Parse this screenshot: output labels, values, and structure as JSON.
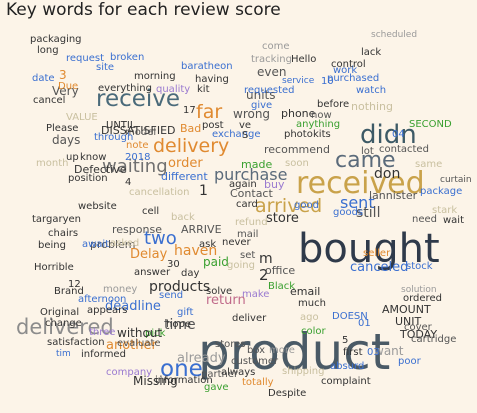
{
  "chart_data": {
    "type": "wordcloud",
    "title": "Key words for each review score",
    "words": [
      {
        "text": "product",
        "color": "#4a5a66"
      },
      {
        "text": "bought",
        "color": "#2f3a4a"
      },
      {
        "text": "received",
        "color": "#c9a24a"
      },
      {
        "text": "delivered",
        "color": "#8c8c8c"
      },
      {
        "text": "receive",
        "color": "#4a6a7a"
      },
      {
        "text": "didn",
        "color": "#3d5a66"
      },
      {
        "text": "came",
        "color": "#5a6a7a"
      },
      {
        "text": "delivery",
        "color": "#e08a30"
      },
      {
        "text": "one",
        "color": "#3a6fd0"
      },
      {
        "text": "two",
        "color": "#3a6fd0"
      },
      {
        "text": "waiting",
        "color": "#707070"
      },
      {
        "text": "arrived",
        "color": "#c9a24a"
      },
      {
        "text": "purchase",
        "color": "#5a6a7a"
      },
      {
        "text": "far",
        "color": "#e08a30"
      },
      {
        "text": "sent",
        "color": "#3a6fd0"
      },
      {
        "text": "haven",
        "color": "#e08a30"
      },
      {
        "text": "time",
        "color": "#555555"
      },
      {
        "text": "products",
        "color": "#333333"
      },
      {
        "text": "store",
        "color": "#333333"
      },
      {
        "text": "still",
        "color": "#555555"
      },
      {
        "text": "don",
        "color": "#333333"
      },
      {
        "text": "another",
        "color": "#e08a30"
      },
      {
        "text": "already",
        "color": "#9a9a9a"
      },
      {
        "text": "return",
        "color": "#c06a8a"
      },
      {
        "text": "order",
        "color": "#e08a30"
      },
      {
        "text": "m",
        "color": "#333333"
      },
      {
        "text": "2",
        "color": "#333333"
      },
      {
        "text": "1",
        "color": "#333333"
      },
      {
        "text": "canceled",
        "color": "#3a6fd0"
      },
      {
        "text": "want",
        "color": "#9a9a9a"
      },
      {
        "text": "Very",
        "color": "#555555"
      },
      {
        "text": "units",
        "color": "#555555"
      },
      {
        "text": "even",
        "color": "#555555"
      },
      {
        "text": "wrong",
        "color": "#555555"
      },
      {
        "text": "made",
        "color": "#3aa030"
      },
      {
        "text": "paid",
        "color": "#3aa030"
      },
      {
        "text": "Delay",
        "color": "#e08a30"
      },
      {
        "text": "deadline",
        "color": "#3a6fd0"
      },
      {
        "text": "Bad",
        "color": "#e08a30"
      },
      {
        "text": "buy",
        "color": "#9a7ad0"
      },
      {
        "text": "lannister",
        "color": "#555555"
      },
      {
        "text": "recommend",
        "color": "#555555"
      },
      {
        "text": "response",
        "color": "#555555"
      },
      {
        "text": "Missing",
        "color": "#333333"
      },
      {
        "text": "DISSATISFIED",
        "color": "#333333"
      },
      {
        "text": "Defective",
        "color": "#333333"
      },
      {
        "text": "different",
        "color": "#3a6fd0"
      },
      {
        "text": "ARRIVE",
        "color": "#555555"
      },
      {
        "text": "problem",
        "color": "#555555"
      },
      {
        "text": "office",
        "color": "#555555"
      },
      {
        "text": "email",
        "color": "#333333"
      },
      {
        "text": "Contact",
        "color": "#555555"
      },
      {
        "text": "TODAY",
        "color": "#333333"
      },
      {
        "text": "AMOUNT",
        "color": "#333333"
      },
      {
        "text": "UNIT",
        "color": "#333333"
      },
      {
        "text": "Hello",
        "color": "#333333"
      },
      {
        "text": "phone",
        "color": "#333333"
      },
      {
        "text": "watch",
        "color": "#3a6fd0"
      },
      {
        "text": "purchased",
        "color": "#3a6fd0"
      },
      {
        "text": "requested",
        "color": "#3a6fd0"
      },
      {
        "text": "give",
        "color": "#3a6fd0"
      },
      {
        "text": "tracking",
        "color": "#9a9a9a"
      },
      {
        "text": "come",
        "color": "#9a9a9a"
      },
      {
        "text": "work",
        "color": "#3a6fd0"
      },
      {
        "text": "service",
        "color": "#3a6fd0"
      },
      {
        "text": "10",
        "color": "#3a6fd0"
      },
      {
        "text": "scheduled",
        "color": "#9a9a9a"
      },
      {
        "text": "lack",
        "color": "#333333"
      },
      {
        "text": "control",
        "color": "#333333"
      },
      {
        "text": "before",
        "color": "#333333"
      },
      {
        "text": "nothing",
        "color": "#c9c0a0"
      },
      {
        "text": "now",
        "color": "#555555"
      },
      {
        "text": "contacted",
        "color": "#555555"
      },
      {
        "text": "photo",
        "color": "#333333"
      },
      {
        "text": "kits",
        "color": "#333333"
      },
      {
        "text": "anything",
        "color": "#3aa030"
      },
      {
        "text": "SECOND",
        "color": "#3aa030"
      },
      {
        "text": "04",
        "color": "#3a6fd0"
      },
      {
        "text": "lot",
        "color": "#555555"
      },
      {
        "text": "same",
        "color": "#c9c0a0"
      },
      {
        "text": "curtain",
        "color": "#555555"
      },
      {
        "text": "package",
        "color": "#3a6fd0"
      },
      {
        "text": "wait",
        "color": "#333333"
      },
      {
        "text": "need",
        "color": "#555555"
      },
      {
        "text": "stock",
        "color": "#3a6fd0"
      },
      {
        "text": "seller",
        "color": "#e08a30"
      },
      {
        "text": "solution",
        "color": "#9a9a9a"
      },
      {
        "text": "ordered",
        "color": "#333333"
      },
      {
        "text": "cover",
        "color": "#555555"
      },
      {
        "text": "cartridge",
        "color": "#555555"
      },
      {
        "text": "poor",
        "color": "#3a6fd0"
      },
      {
        "text": "03",
        "color": "#3a6fd0"
      },
      {
        "text": "first",
        "color": "#333333"
      },
      {
        "text": "absurd",
        "color": "#3a6fd0"
      },
      {
        "text": "complaint",
        "color": "#333333"
      },
      {
        "text": "Despite",
        "color": "#333333"
      },
      {
        "text": "totally",
        "color": "#e08a30"
      },
      {
        "text": "shipping",
        "color": "#c9c0a0"
      },
      {
        "text": "always",
        "color": "#333333"
      },
      {
        "text": "customer",
        "color": "#555555"
      },
      {
        "text": "partner",
        "color": "#555555"
      },
      {
        "text": "stores",
        "color": "#555555"
      },
      {
        "text": "box",
        "color": "#555555"
      },
      {
        "text": "more",
        "color": "#9a9a9a"
      },
      {
        "text": "gave",
        "color": "#3aa030"
      },
      {
        "text": "information",
        "color": "#333333"
      },
      {
        "text": "company",
        "color": "#9a7ad0"
      },
      {
        "text": "informed",
        "color": "#333333"
      },
      {
        "text": "tim",
        "color": "#3a6fd0"
      },
      {
        "text": "satisfaction",
        "color": "#333333"
      },
      {
        "text": "Original",
        "color": "#333333"
      },
      {
        "text": "change",
        "color": "#333333"
      },
      {
        "text": "three",
        "color": "#9a7ad0"
      },
      {
        "text": "evaluate",
        "color": "#555555"
      },
      {
        "text": "pick",
        "color": "#3aa030"
      },
      {
        "text": "hope",
        "color": "#333333"
      },
      {
        "text": "without",
        "color": "#333333"
      },
      {
        "text": "appears",
        "color": "#333333"
      },
      {
        "text": "afternoon",
        "color": "#3a6fd0"
      },
      {
        "text": "Brand",
        "color": "#333333"
      },
      {
        "text": "money",
        "color": "#9a9a9a"
      },
      {
        "text": "Horrible",
        "color": "#333333"
      },
      {
        "text": "await",
        "color": "#3a6fd0"
      },
      {
        "text": "asked",
        "color": "#c9c0a0"
      },
      {
        "text": "being",
        "color": "#333333"
      },
      {
        "text": "chairs",
        "color": "#333333"
      },
      {
        "text": "targaryen",
        "color": "#333333"
      },
      {
        "text": "website",
        "color": "#333333"
      },
      {
        "text": "4",
        "color": "#333333"
      },
      {
        "text": "cancellation",
        "color": "#c9c0a0"
      },
      {
        "text": "2018",
        "color": "#3a6fd0"
      },
      {
        "text": "note",
        "color": "#e08a30"
      },
      {
        "text": "month",
        "color": "#c9c0a0"
      },
      {
        "text": "days",
        "color": "#555555"
      },
      {
        "text": "up",
        "color": "#333333"
      },
      {
        "text": "know",
        "color": "#333333"
      },
      {
        "text": "position",
        "color": "#333333"
      },
      {
        "text": "through",
        "color": "#3a6fd0"
      },
      {
        "text": "model",
        "color": "#555555"
      },
      {
        "text": "UNTIL",
        "color": "#333333"
      },
      {
        "text": "VALUE",
        "color": "#c9c0a0"
      },
      {
        "text": "Please",
        "color": "#333333"
      },
      {
        "text": "cancel",
        "color": "#333333"
      },
      {
        "text": "date",
        "color": "#3a6fd0"
      },
      {
        "text": "3",
        "color": "#e08a30"
      },
      {
        "text": "Due",
        "color": "#e08a30"
      },
      {
        "text": "everything",
        "color": "#333333"
      },
      {
        "text": "request",
        "color": "#3a6fd0"
      },
      {
        "text": "site",
        "color": "#3a6fd0"
      },
      {
        "text": "broken",
        "color": "#3a6fd0"
      },
      {
        "text": "long",
        "color": "#333333"
      },
      {
        "text": "packaging",
        "color": "#333333"
      },
      {
        "text": "morning",
        "color": "#333333"
      },
      {
        "text": "quality",
        "color": "#9a7ad0"
      },
      {
        "text": "baratheon",
        "color": "#3a6fd0"
      },
      {
        "text": "having",
        "color": "#333333"
      },
      {
        "text": "kit",
        "color": "#333333"
      },
      {
        "text": "17",
        "color": "#333333"
      },
      {
        "text": "post",
        "color": "#333333"
      },
      {
        "text": "exchange",
        "color": "#3a6fd0"
      },
      {
        "text": "ve",
        "color": "#333333"
      },
      {
        "text": "S",
        "color": "#333333"
      },
      {
        "text": "card",
        "color": "#333333"
      },
      {
        "text": "good",
        "color": "#3a6fd0"
      },
      {
        "text": "again",
        "color": "#333333"
      },
      {
        "text": "refund",
        "color": "#c9c0a0"
      },
      {
        "text": "never",
        "color": "#333333"
      },
      {
        "text": "mail",
        "color": "#555555"
      },
      {
        "text": "set",
        "color": "#555555"
      },
      {
        "text": "ask",
        "color": "#333333"
      },
      {
        "text": "back",
        "color": "#c9c0a0"
      },
      {
        "text": "cell",
        "color": "#333333"
      },
      {
        "text": "30",
        "color": "#333333"
      },
      {
        "text": "day",
        "color": "#333333"
      },
      {
        "text": "solve",
        "color": "#333333"
      },
      {
        "text": "answer",
        "color": "#333333"
      },
      {
        "text": "send",
        "color": "#3a6fd0"
      },
      {
        "text": "12",
        "color": "#333333"
      },
      {
        "text": "gift",
        "color": "#3a6fd0"
      },
      {
        "text": "going",
        "color": "#c9c0a0"
      },
      {
        "text": "Black",
        "color": "#3aa030"
      },
      {
        "text": "much",
        "color": "#333333"
      },
      {
        "text": "make",
        "color": "#9a7ad0"
      },
      {
        "text": "deliver",
        "color": "#333333"
      },
      {
        "text": "soon",
        "color": "#c9c0a0"
      },
      {
        "text": "ago",
        "color": "#c9c0a0"
      },
      {
        "text": "DOESN",
        "color": "#3a6fd0"
      },
      {
        "text": "color",
        "color": "#3aa030"
      },
      {
        "text": "01",
        "color": "#3a6fd0"
      },
      {
        "text": "5",
        "color": "#333333"
      },
      {
        "text": "goods",
        "color": "#3a6fd0"
      },
      {
        "text": "stark",
        "color": "#c9c0a0"
      }
    ]
  }
}
